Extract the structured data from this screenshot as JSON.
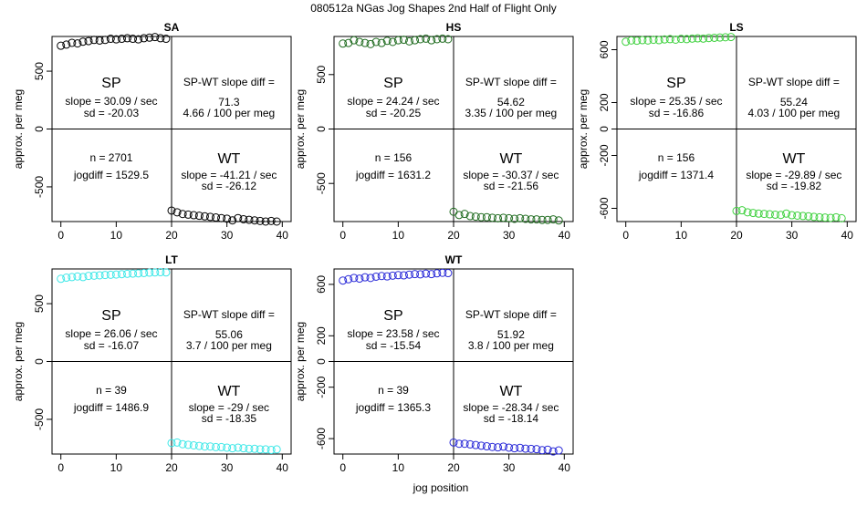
{
  "figure": {
    "title": "080512a   NGas Jog Shapes 2nd Half of Flight Only",
    "xlabel": "jog position"
  },
  "chart_data": [
    {
      "type": "scatter",
      "title": "SA",
      "ylabel": "approx. per meg",
      "color": "#000000",
      "xlim": [
        0,
        40
      ],
      "ylim": [
        -800,
        800
      ],
      "xticks": [
        0,
        10,
        20,
        30,
        40
      ],
      "yticks": [
        -500,
        0,
        500
      ],
      "sp_x": [
        0,
        1,
        2,
        3,
        4,
        5,
        6,
        7,
        8,
        9,
        10,
        11,
        12,
        13,
        14,
        15,
        16,
        17,
        18,
        19
      ],
      "sp_y": [
        720,
        730,
        745,
        740,
        755,
        760,
        770,
        765,
        770,
        780,
        775,
        780,
        785,
        780,
        775,
        785,
        790,
        795,
        785,
        780
      ],
      "wt_x": [
        20,
        21,
        22,
        23,
        24,
        25,
        26,
        27,
        28,
        29,
        30,
        31,
        32,
        33,
        34,
        35,
        36,
        37,
        38,
        39
      ],
      "wt_y": [
        -705,
        -720,
        -735,
        -740,
        -745,
        -750,
        -755,
        -760,
        -765,
        -770,
        -775,
        -790,
        -770,
        -780,
        -785,
        -790,
        -795,
        -800,
        -795,
        -800
      ],
      "annotations": {
        "sp_label": "SP",
        "sp_slope": "slope = 30.09 / sec",
        "sp_sd": "sd = -20.03",
        "diff_label": "SP-WT slope diff =",
        "diff_value": "71.3",
        "diff_ratio": "4.66 / 100 per meg",
        "n": "n = 2701",
        "jogdiff": "jogdiff = 1529.5",
        "wt_label": "WT",
        "wt_slope": "slope = -41.21 / sec",
        "wt_sd": "sd = -26.12"
      }
    },
    {
      "type": "scatter",
      "title": "HS",
      "ylabel": "approx. per meg",
      "color": "#1f6b1f",
      "xlim": [
        0,
        40
      ],
      "ylim": [
        -850,
        850
      ],
      "xticks": [
        0,
        10,
        20,
        30,
        40
      ],
      "yticks": [
        -500,
        0,
        500
      ],
      "sp_x": [
        0,
        1,
        2,
        3,
        4,
        5,
        6,
        7,
        8,
        9,
        10,
        11,
        12,
        13,
        14,
        15,
        16,
        17,
        18,
        19
      ],
      "sp_y": [
        785,
        790,
        815,
        800,
        790,
        780,
        800,
        790,
        810,
        800,
        815,
        820,
        805,
        815,
        825,
        830,
        815,
        825,
        830,
        825
      ],
      "wt_x": [
        20,
        21,
        22,
        23,
        24,
        25,
        26,
        27,
        28,
        29,
        30,
        31,
        32,
        33,
        34,
        35,
        36,
        37,
        38,
        39
      ],
      "wt_y": [
        -760,
        -790,
        -780,
        -800,
        -805,
        -810,
        -810,
        -815,
        -820,
        -815,
        -820,
        -825,
        -820,
        -825,
        -830,
        -830,
        -835,
        -835,
        -830,
        -840
      ],
      "annotations": {
        "sp_label": "SP",
        "sp_slope": "slope = 24.24 / sec",
        "sp_sd": "sd = -20.25",
        "diff_label": "SP-WT slope diff =",
        "diff_value": "54.62",
        "diff_ratio": "3.35 / 100 per meg",
        "n": "n = 156",
        "jogdiff": "jogdiff = 1631.2",
        "wt_label": "WT",
        "wt_slope": "slope = -30.37 / sec",
        "wt_sd": "sd = -21.56"
      }
    },
    {
      "type": "scatter",
      "title": "LS",
      "ylabel": "approx. per meg",
      "color": "#3fd13f",
      "xlim": [
        0,
        40
      ],
      "ylim": [
        -700,
        700
      ],
      "xticks": [
        0,
        10,
        20,
        30,
        40
      ],
      "yticks": [
        -600,
        -200,
        0,
        200,
        600
      ],
      "sp_x": [
        0,
        1,
        2,
        3,
        4,
        5,
        6,
        7,
        8,
        9,
        10,
        11,
        12,
        13,
        14,
        15,
        16,
        17,
        18,
        19
      ],
      "sp_y": [
        660,
        670,
        668,
        672,
        670,
        675,
        672,
        678,
        680,
        676,
        682,
        680,
        684,
        686,
        684,
        688,
        690,
        692,
        694,
        696
      ],
      "wt_x": [
        20,
        21,
        22,
        23,
        24,
        25,
        26,
        27,
        28,
        29,
        30,
        31,
        32,
        33,
        34,
        35,
        36,
        37,
        38,
        39
      ],
      "wt_y": [
        -620,
        -615,
        -630,
        -635,
        -640,
        -642,
        -645,
        -648,
        -650,
        -640,
        -652,
        -655,
        -658,
        -660,
        -665,
        -668,
        -670,
        -672,
        -668,
        -675
      ],
      "annotations": {
        "sp_label": "SP",
        "sp_slope": "slope = 25.35 / sec",
        "sp_sd": "sd = -16.86",
        "diff_label": "SP-WT slope diff =",
        "diff_value": "55.24",
        "diff_ratio": "4.03 / 100 per meg",
        "n": "n = 156",
        "jogdiff": "jogdiff = 1371.4",
        "wt_label": "WT",
        "wt_slope": "slope = -29.89 / sec",
        "wt_sd": "sd = -19.82"
      }
    },
    {
      "type": "scatter",
      "title": "LT",
      "ylabel": "approx. per meg",
      "color": "#3fe8e8",
      "xlim": [
        0,
        40
      ],
      "ylim": [
        -800,
        800
      ],
      "xticks": [
        0,
        10,
        20,
        30,
        40
      ],
      "yticks": [
        -500,
        0,
        500
      ],
      "sp_x": [
        0,
        1,
        2,
        3,
        4,
        5,
        6,
        7,
        8,
        9,
        10,
        11,
        12,
        13,
        14,
        15,
        16,
        17,
        18,
        19
      ],
      "sp_y": [
        715,
        725,
        730,
        735,
        730,
        740,
        742,
        745,
        748,
        750,
        752,
        755,
        758,
        760,
        762,
        765,
        768,
        770,
        772,
        770
      ],
      "wt_x": [
        20,
        21,
        22,
        23,
        24,
        25,
        26,
        27,
        28,
        29,
        30,
        31,
        32,
        33,
        34,
        35,
        36,
        37,
        38,
        39
      ],
      "wt_y": [
        -705,
        -700,
        -715,
        -720,
        -725,
        -730,
        -735,
        -735,
        -740,
        -740,
        -745,
        -750,
        -745,
        -750,
        -755,
        -755,
        -760,
        -760,
        -765,
        -760
      ],
      "annotations": {
        "sp_label": "SP",
        "sp_slope": "slope = 26.06 / sec",
        "sp_sd": "sd = -16.07",
        "diff_label": "SP-WT slope diff =",
        "diff_value": "55.06",
        "diff_ratio": "3.7 / 100 per meg",
        "n": "n = 39",
        "jogdiff": "jogdiff = 1486.9",
        "wt_label": "WT",
        "wt_slope": "slope = -29 / sec",
        "wt_sd": "sd = -18.35"
      }
    },
    {
      "type": "scatter",
      "title": "WT",
      "ylabel": "approx. per meg",
      "color": "#2a2ad8",
      "xlim": [
        0,
        40
      ],
      "ylim": [
        -720,
        720
      ],
      "xticks": [
        0,
        10,
        20,
        30,
        40
      ],
      "yticks": [
        -600,
        -200,
        0,
        200,
        600
      ],
      "sp_x": [
        0,
        1,
        2,
        3,
        4,
        5,
        6,
        7,
        8,
        9,
        10,
        11,
        12,
        13,
        14,
        15,
        16,
        17,
        18,
        19
      ],
      "sp_y": [
        630,
        640,
        650,
        645,
        655,
        650,
        660,
        665,
        662,
        668,
        672,
        670,
        676,
        680,
        678,
        684,
        680,
        686,
        690,
        688
      ],
      "wt_x": [
        20,
        21,
        22,
        23,
        24,
        25,
        26,
        27,
        28,
        29,
        30,
        31,
        32,
        33,
        34,
        35,
        36,
        37,
        38,
        39
      ],
      "wt_y": [
        -630,
        -640,
        -640,
        -645,
        -650,
        -655,
        -660,
        -665,
        -668,
        -662,
        -670,
        -675,
        -672,
        -678,
        -680,
        -682,
        -690,
        -686,
        -700,
        -692
      ],
      "annotations": {
        "sp_label": "SP",
        "sp_slope": "slope = 23.58 / sec",
        "sp_sd": "sd = -15.54",
        "diff_label": "SP-WT slope diff =",
        "diff_value": "51.92",
        "diff_ratio": "3.8 / 100 per meg",
        "n": "n = 39",
        "jogdiff": "jogdiff = 1365.3",
        "wt_label": "WT",
        "wt_slope": "slope = -28.34 / sec",
        "wt_sd": "sd = -18.14"
      }
    }
  ]
}
